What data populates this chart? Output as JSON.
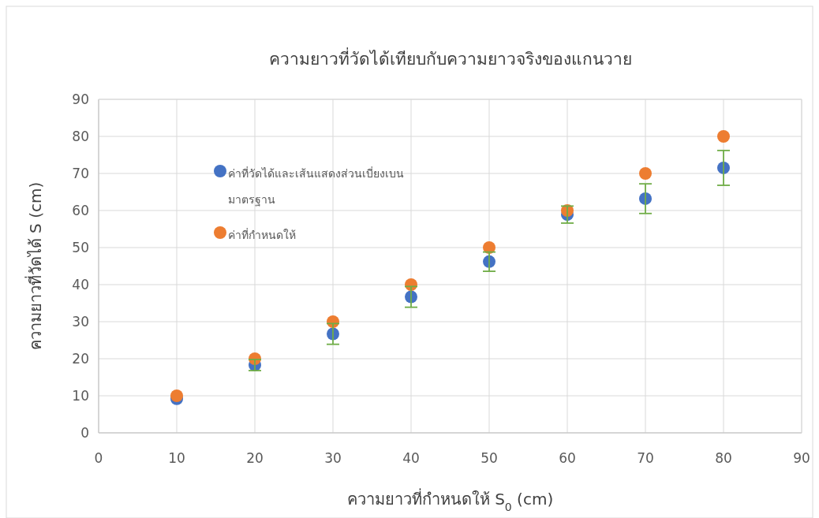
{
  "chart_data": {
    "type": "scatter",
    "title": "ความยาวที่วัดได้เทียบกับความยาวจริงของแกนวาย",
    "xlabel": "ความยาวที่กำหนดให้ S$_{0}$ (cm)",
    "ylabel": "ความยาวที่วัดได้ S (cm)",
    "x": [
      10,
      20,
      30,
      40,
      50,
      60,
      70,
      80
    ],
    "series": [
      {
        "name": "ค่าที่วัดได้และเส้นแสดงส่วนเบี่ยงเบนมาตรฐาน",
        "color": "#4472c4",
        "values": [
          9.2,
          18.3,
          26.7,
          36.7,
          46.2,
          58.9,
          63.2,
          71.5
        ],
        "errors": [
          null,
          1.5,
          2.8,
          2.8,
          2.6,
          2.3,
          4.0,
          4.7
        ]
      },
      {
        "name": "ค่าที่กำหนดให้",
        "color": "#ed7d31",
        "values": [
          10,
          20,
          30,
          40,
          50,
          60,
          70,
          80
        ]
      }
    ],
    "xlim": [
      0,
      90
    ],
    "ylim": [
      0,
      90
    ],
    "xticks": [
      0,
      10,
      20,
      30,
      40,
      50,
      60,
      70,
      80,
      90
    ],
    "yticks": [
      0,
      10,
      20,
      30,
      40,
      50,
      60,
      70,
      80,
      90
    ],
    "grid": true,
    "legend": "top left",
    "marker": "circle"
  }
}
